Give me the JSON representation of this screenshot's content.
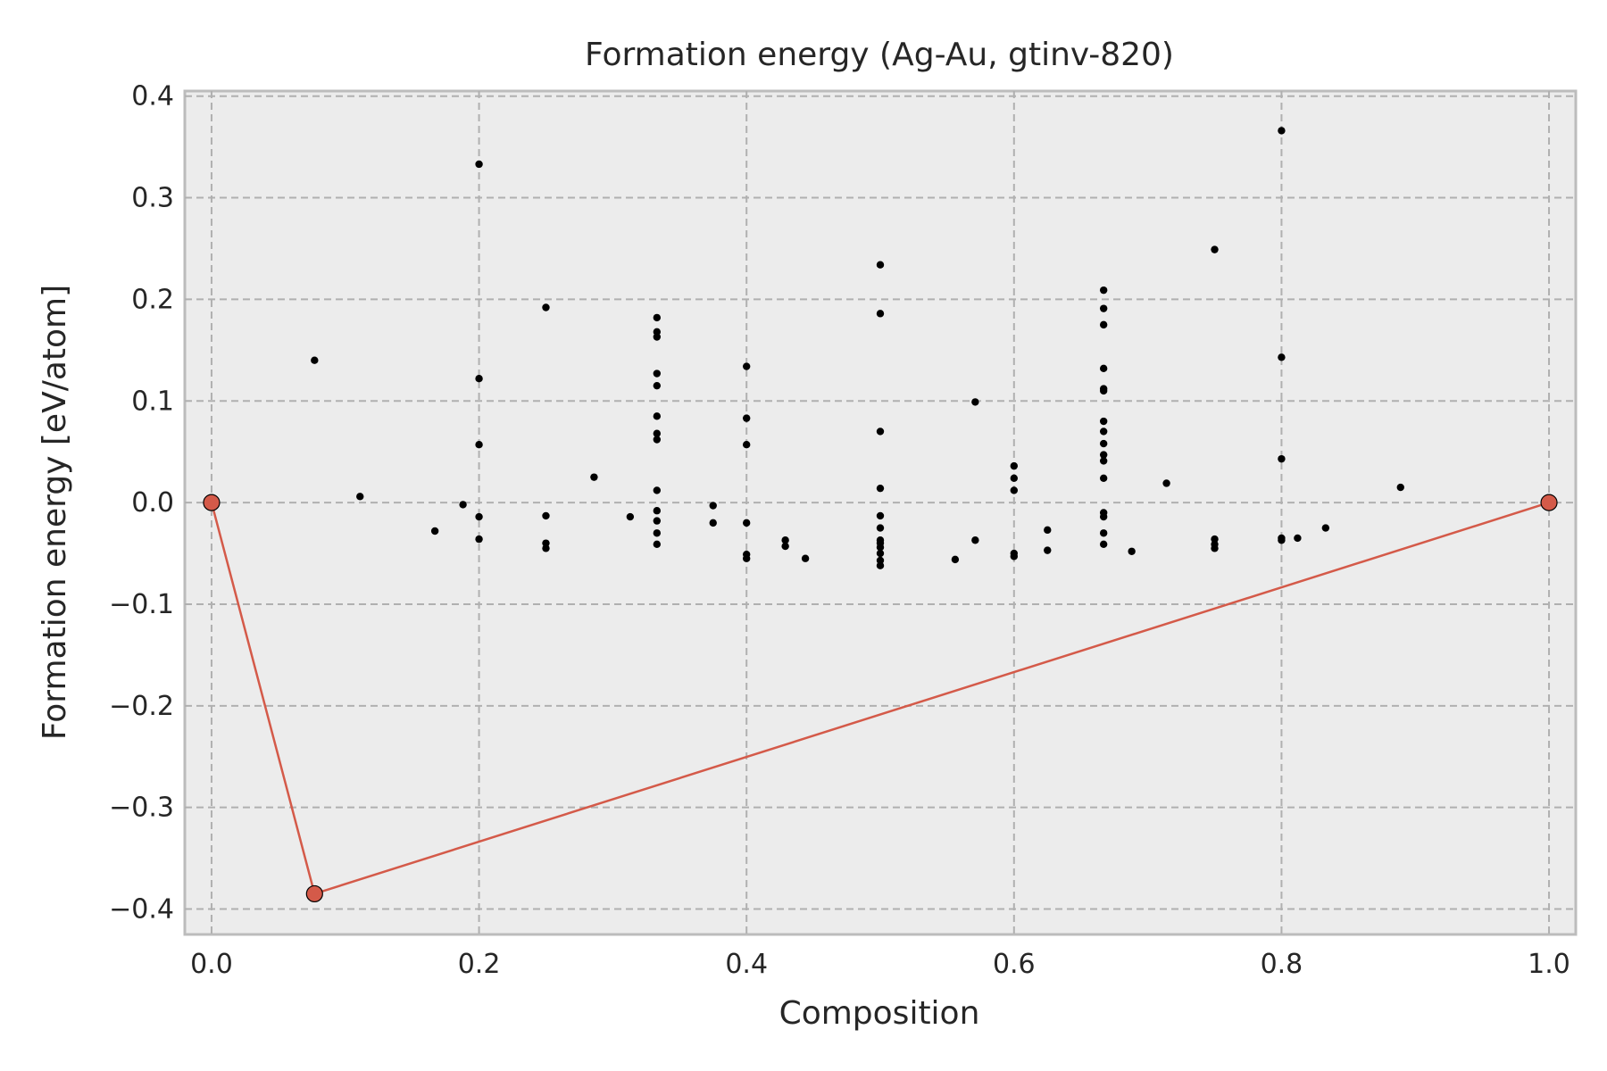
{
  "chart_data": {
    "type": "scatter",
    "title": "Formation energy (Ag-Au, gtinv-820)",
    "xlabel": "Composition",
    "ylabel": "Formation energy [eV/atom]",
    "xlim": [
      -0.02,
      1.02
    ],
    "ylim": [
      -0.425,
      0.405
    ],
    "grid": true,
    "xticks": [
      0.0,
      0.2,
      0.4,
      0.6,
      0.8,
      1.0
    ],
    "xtick_labels": [
      "0.0",
      "0.2",
      "0.4",
      "0.6",
      "0.8",
      "1.0"
    ],
    "yticks": [
      0.4,
      0.3,
      0.2,
      0.1,
      0.0,
      -0.1,
      -0.2,
      -0.3,
      -0.4
    ],
    "ytick_labels": [
      "0.4",
      "0.3",
      "0.2",
      "0.1",
      "0.0",
      "−0.1",
      "−0.2",
      "−0.3",
      "−0.4"
    ],
    "colors": {
      "points": "#000000",
      "hull": "#d45a49",
      "background": "#ececec",
      "grid": "#b0b0b0"
    },
    "series": [
      {
        "kind": "points",
        "points": [
          [
            0.077,
            0.14
          ],
          [
            0.111,
            0.006
          ],
          [
            0.167,
            -0.028
          ],
          [
            0.188,
            -0.002
          ],
          [
            0.2,
            0.333
          ],
          [
            0.2,
            0.122
          ],
          [
            0.2,
            0.057
          ],
          [
            0.2,
            -0.014
          ],
          [
            0.2,
            -0.036
          ],
          [
            0.25,
            0.192
          ],
          [
            0.25,
            -0.013
          ],
          [
            0.25,
            -0.04
          ],
          [
            0.25,
            -0.045
          ],
          [
            0.286,
            0.025
          ],
          [
            0.313,
            -0.014
          ],
          [
            0.333,
            0.182
          ],
          [
            0.333,
            0.168
          ],
          [
            0.333,
            0.163
          ],
          [
            0.333,
            0.127
          ],
          [
            0.333,
            0.115
          ],
          [
            0.333,
            0.085
          ],
          [
            0.333,
            0.068
          ],
          [
            0.333,
            0.062
          ],
          [
            0.333,
            0.012
          ],
          [
            0.333,
            -0.008
          ],
          [
            0.333,
            -0.018
          ],
          [
            0.333,
            -0.03
          ],
          [
            0.333,
            -0.041
          ],
          [
            0.375,
            -0.003
          ],
          [
            0.375,
            -0.02
          ],
          [
            0.4,
            0.134
          ],
          [
            0.4,
            0.083
          ],
          [
            0.4,
            0.057
          ],
          [
            0.4,
            -0.02
          ],
          [
            0.4,
            -0.051
          ],
          [
            0.4,
            -0.055
          ],
          [
            0.429,
            -0.037
          ],
          [
            0.429,
            -0.043
          ],
          [
            0.444,
            -0.055
          ],
          [
            0.5,
            0.234
          ],
          [
            0.5,
            0.186
          ],
          [
            0.5,
            0.07
          ],
          [
            0.5,
            0.014
          ],
          [
            0.5,
            -0.013
          ],
          [
            0.5,
            -0.025
          ],
          [
            0.5,
            -0.037
          ],
          [
            0.5,
            -0.04
          ],
          [
            0.5,
            -0.044
          ],
          [
            0.5,
            -0.05
          ],
          [
            0.5,
            -0.057
          ],
          [
            0.5,
            -0.062
          ],
          [
            0.556,
            -0.056
          ],
          [
            0.571,
            0.099
          ],
          [
            0.571,
            -0.037
          ],
          [
            0.6,
            0.036
          ],
          [
            0.6,
            0.024
          ],
          [
            0.6,
            0.012
          ],
          [
            0.6,
            -0.05
          ],
          [
            0.6,
            -0.053
          ],
          [
            0.625,
            -0.027
          ],
          [
            0.625,
            -0.047
          ],
          [
            0.667,
            0.209
          ],
          [
            0.667,
            0.191
          ],
          [
            0.667,
            0.175
          ],
          [
            0.667,
            0.132
          ],
          [
            0.667,
            0.112
          ],
          [
            0.667,
            0.11
          ],
          [
            0.667,
            0.08
          ],
          [
            0.667,
            0.07
          ],
          [
            0.667,
            0.058
          ],
          [
            0.667,
            0.047
          ],
          [
            0.667,
            0.041
          ],
          [
            0.667,
            0.024
          ],
          [
            0.667,
            -0.01
          ],
          [
            0.667,
            -0.014
          ],
          [
            0.667,
            -0.03
          ],
          [
            0.667,
            -0.041
          ],
          [
            0.688,
            -0.048
          ],
          [
            0.714,
            0.019
          ],
          [
            0.75,
            0.249
          ],
          [
            0.75,
            -0.036
          ],
          [
            0.75,
            -0.041
          ],
          [
            0.75,
            -0.045
          ],
          [
            0.8,
            0.366
          ],
          [
            0.8,
            0.143
          ],
          [
            0.8,
            0.043
          ],
          [
            0.8,
            -0.035
          ],
          [
            0.8,
            -0.037
          ],
          [
            0.812,
            -0.035
          ],
          [
            0.833,
            -0.025
          ],
          [
            0.889,
            0.015
          ]
        ]
      },
      {
        "kind": "convex_hull",
        "points": [
          [
            0.0,
            0.0
          ],
          [
            0.077,
            -0.385
          ],
          [
            1.0,
            0.0
          ]
        ]
      }
    ]
  }
}
